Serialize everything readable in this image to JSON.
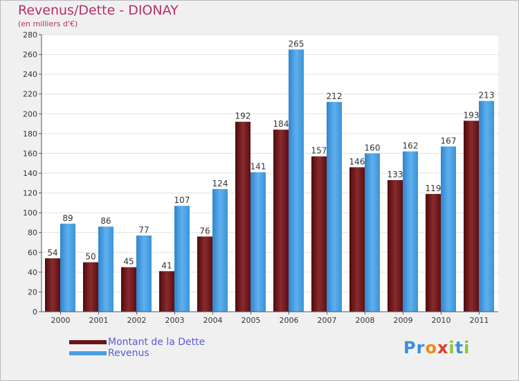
{
  "chart_data": {
    "type": "bar",
    "title": "Revenus/Dette - DIONAY",
    "subtitle": "(en milliers d'€)",
    "categories": [
      "2000",
      "2001",
      "2002",
      "2003",
      "2004",
      "2005",
      "2006",
      "2007",
      "2008",
      "2009",
      "2010",
      "2011"
    ],
    "series": [
      {
        "name": "Montant de la Dette",
        "color": "#6b1518",
        "values": [
          54,
          50,
          45,
          41,
          76,
          192,
          184,
          157,
          146,
          133,
          119,
          193
        ]
      },
      {
        "name": "Revenus",
        "color": "#4a9fe0",
        "values": [
          89,
          86,
          77,
          107,
          124,
          141,
          265,
          212,
          160,
          162,
          167,
          213
        ]
      }
    ],
    "ylim": [
      0,
      280
    ],
    "yticks": [
      0,
      20,
      40,
      60,
      80,
      100,
      120,
      140,
      160,
      180,
      200,
      220,
      240,
      260,
      280
    ],
    "grid": true,
    "legend_position": "bottom-left"
  },
  "logo": {
    "letters": [
      {
        "ch": "P",
        "color": "#3a8fd8"
      },
      {
        "ch": "r",
        "color": "#3a8fd8"
      },
      {
        "ch": "o",
        "color": "#f08a1c"
      },
      {
        "ch": "x",
        "color": "#e23a2a"
      },
      {
        "ch": "i",
        "color": "#8cc63f"
      },
      {
        "ch": "t",
        "color": "#3a8fd8"
      },
      {
        "ch": "i",
        "color": "#8cc63f"
      }
    ]
  }
}
